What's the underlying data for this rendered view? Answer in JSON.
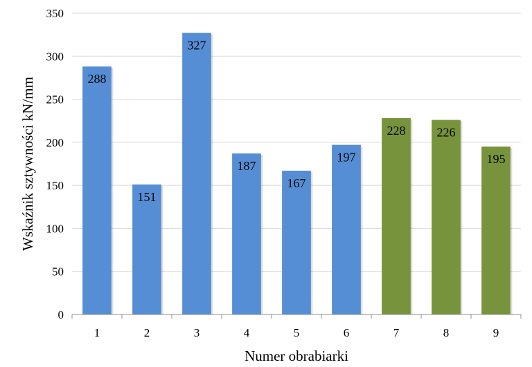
{
  "chart_data": {
    "type": "bar",
    "title": "",
    "xlabel": "Numer obrabiarki",
    "ylabel": "Wskaźnik sztywności  kN/mm",
    "categories": [
      "1",
      "2",
      "3",
      "4",
      "5",
      "6",
      "7",
      "8",
      "9"
    ],
    "values": [
      288,
      151,
      327,
      187,
      167,
      197,
      228,
      226,
      195
    ],
    "bar_colors": [
      "#558ed5",
      "#558ed5",
      "#558ed5",
      "#558ed5",
      "#558ed5",
      "#558ed5",
      "#77933c",
      "#77933c",
      "#77933c"
    ],
    "ylim": [
      0,
      350
    ],
    "yticks": [
      0,
      50,
      100,
      150,
      200,
      250,
      300,
      350
    ],
    "grid": true,
    "legend": "none",
    "data_labels": true
  }
}
